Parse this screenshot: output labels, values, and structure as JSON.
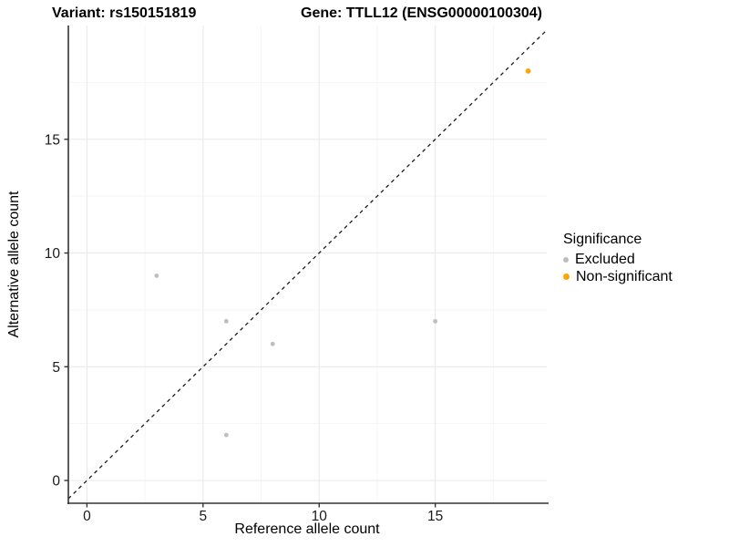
{
  "titles": {
    "variant": "Variant: rs150151819",
    "gene": "Gene: TTLL12 (ENSG00000100304)"
  },
  "legend": {
    "title": "Significance",
    "items": [
      {
        "label": "Excluded",
        "color": "#BEBEBE"
      },
      {
        "label": "Non-significant",
        "color": "#FFA500"
      }
    ]
  },
  "chart_data": {
    "type": "scatter",
    "xlabel": "Reference allele count",
    "ylabel": "Alternative allele count",
    "xlim": [
      -0.8,
      19.8
    ],
    "ylim": [
      -1,
      20
    ],
    "xticks": [
      0,
      5,
      10,
      15
    ],
    "yticks": [
      0,
      5,
      10,
      15
    ],
    "minor_xticks": [
      2.5,
      7.5,
      12.5,
      17.5
    ],
    "minor_yticks": [
      2.5,
      7.5,
      12.5,
      17.5
    ],
    "grid": true,
    "legend_position": "right",
    "series": [
      {
        "name": "Excluded",
        "color": "#BEBEBE",
        "marker_radius": 2.4,
        "points": [
          [
            3,
            9
          ],
          [
            6,
            7
          ],
          [
            8,
            6
          ],
          [
            15,
            7
          ],
          [
            6,
            2
          ]
        ]
      },
      {
        "name": "Non-significant",
        "color": "#FFA500",
        "marker_radius": 2.9,
        "points": [
          [
            19,
            18
          ]
        ]
      }
    ],
    "reference_line": {
      "type": "identity",
      "style": "dashed",
      "color": "#1a1a1a"
    },
    "colors": {
      "major_grid": "#ebebeb",
      "minor_grid": "#f5f5f5",
      "axis_line": "#333333",
      "tick_mark": "#333333",
      "tick_label": "#1a1a1a"
    }
  }
}
